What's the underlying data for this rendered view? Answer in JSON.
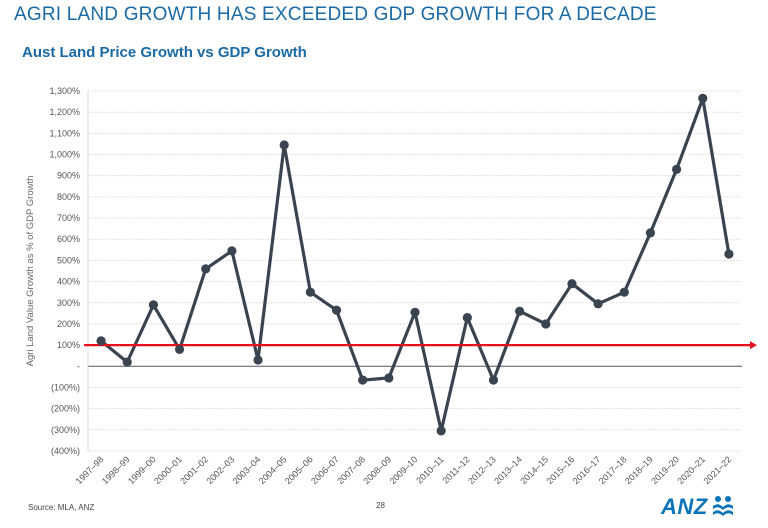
{
  "page": {
    "title": "AGRI LAND GROWTH HAS EXCEEDED GDP GROWTH FOR A DECADE",
    "source": "Source: MLA, ANZ",
    "page_number": "28",
    "logo_text": "ANZ",
    "logo_icon": "anz-people-icon",
    "colors": {
      "title": "#1a6aa5",
      "line": "#3a4450",
      "reference_line": "#e8101e",
      "logo": "#0b74b8"
    }
  },
  "chart_data": {
    "type": "line",
    "title": "Aust Land Price Growth vs GDP Growth",
    "xlabel": "",
    "ylabel": "Agri Land Value Growth as % of GDP Growth",
    "ylim": [
      -400,
      1300
    ],
    "ytick_step": 100,
    "ytick_labels": [
      "(400%)",
      "(300%)",
      "(200%)",
      "(100%)",
      "-",
      "100%",
      "200%",
      "300%",
      "400%",
      "500%",
      "600%",
      "700%",
      "800%",
      "900%",
      "1,000%",
      "1,100%",
      "1,200%",
      "1,300%"
    ],
    "grid": true,
    "categories": [
      "1997–98",
      "1998–99",
      "1999–00",
      "2000–01",
      "2001–02",
      "2002–03",
      "2003–04",
      "2004–05",
      "2005–06",
      "2006–07",
      "2007–08",
      "2008–09",
      "2009–10",
      "2010–11",
      "2011–12",
      "2012–13",
      "2013–14",
      "2014–15",
      "2015–16",
      "2016–17",
      "2017–18",
      "2018–19",
      "2019–20",
      "2020–21",
      "2021–22"
    ],
    "series": [
      {
        "values": [
          120,
          20,
          290,
          80,
          460,
          545,
          30,
          1045,
          350,
          265,
          -65,
          -55,
          255,
          -305,
          230,
          -65,
          260,
          200,
          390,
          295,
          350,
          630,
          930,
          1265,
          530
        ]
      }
    ],
    "reference_line": {
      "value": 100
    }
  }
}
